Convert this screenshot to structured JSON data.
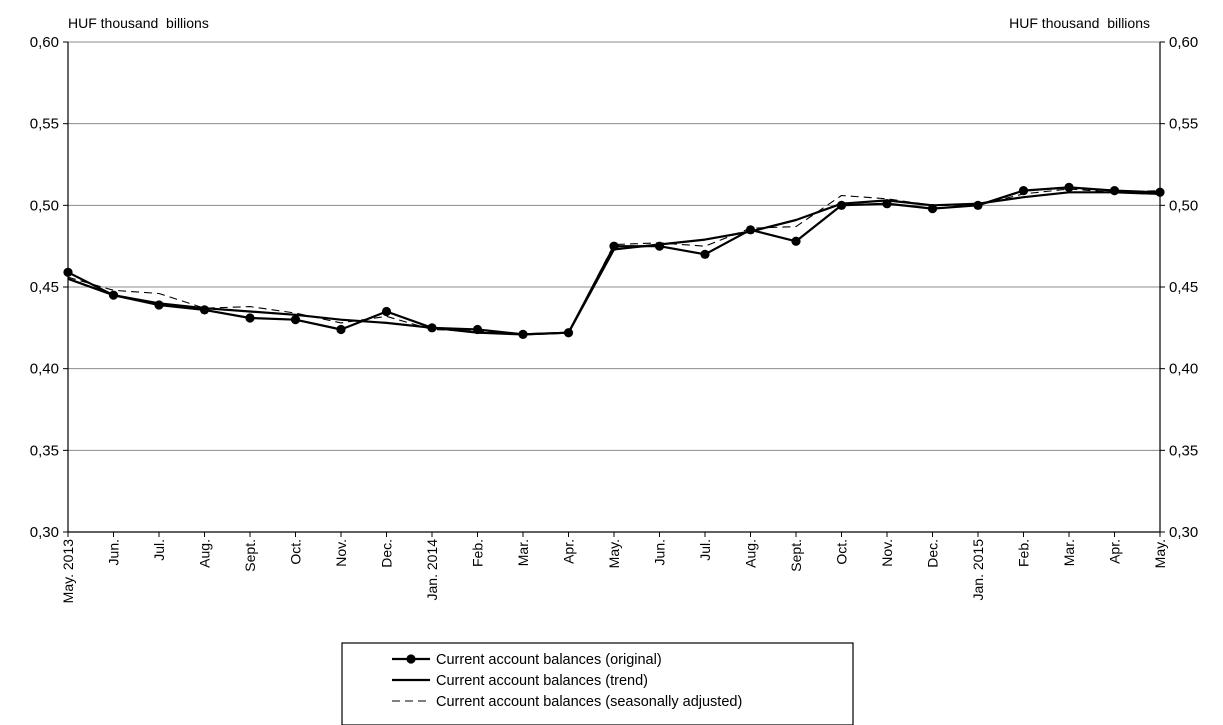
{
  "chart_data": {
    "type": "line",
    "y_unit_left": "HUF thousand  billions",
    "y_unit_right": "HUF thousand  billions",
    "ylim": [
      0.3,
      0.6
    ],
    "yticks": [
      "0,30",
      "0,35",
      "0,40",
      "0,45",
      "0,50",
      "0,55",
      "0,60"
    ],
    "grid": "horizontal",
    "legend_position": "bottom-center",
    "categories": [
      "May. 2013",
      "Jun.",
      "Jul.",
      "Aug.",
      "Sept.",
      "Oct.",
      "Nov.",
      "Dec.",
      "Jan. 2014",
      "Feb.",
      "Mar.",
      "Apr.",
      "May.",
      "Jun.",
      "Jul.",
      "Aug.",
      "Sept.",
      "Oct.",
      "Nov.",
      "Dec.",
      "Jan. 2015",
      "Feb.",
      "Mar.",
      "Apr.",
      "May."
    ],
    "series": [
      {
        "name": "Current account balances (original)",
        "style": "solid-markers",
        "color": "#000000",
        "values": [
          0.459,
          0.445,
          0.439,
          0.436,
          0.431,
          0.43,
          0.424,
          0.435,
          0.425,
          0.424,
          0.421,
          0.422,
          0.475,
          0.475,
          0.47,
          0.485,
          0.478,
          0.5,
          0.501,
          0.498,
          0.5,
          0.509,
          0.511,
          0.509,
          0.508
        ]
      },
      {
        "name": "Current account balances (trend)",
        "style": "solid",
        "color": "#000000",
        "values": [
          0.455,
          0.445,
          0.44,
          0.437,
          0.435,
          0.433,
          0.43,
          0.428,
          0.425,
          0.422,
          0.421,
          0.422,
          0.473,
          0.476,
          0.479,
          0.484,
          0.491,
          0.501,
          0.503,
          0.5,
          0.501,
          0.505,
          0.508,
          0.508,
          0.507
        ]
      },
      {
        "name": "Current account balances (seasonally adjusted)",
        "style": "dashed",
        "color": "#000000",
        "values": [
          0.456,
          0.448,
          0.446,
          0.437,
          0.438,
          0.434,
          0.428,
          0.432,
          0.424,
          0.423,
          0.421,
          0.422,
          0.476,
          0.477,
          0.475,
          0.486,
          0.487,
          0.506,
          0.504,
          0.5,
          0.5,
          0.507,
          0.51,
          0.508,
          0.509
        ]
      }
    ]
  }
}
